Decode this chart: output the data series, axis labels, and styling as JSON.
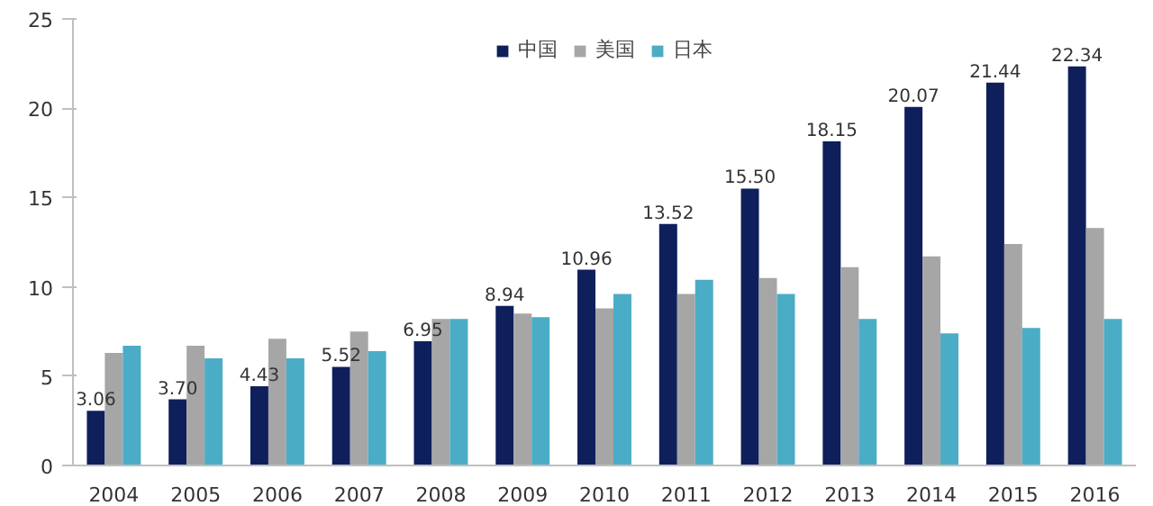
{
  "chart_data": {
    "type": "bar",
    "categories": [
      "2004",
      "2005",
      "2006",
      "2007",
      "2008",
      "2009",
      "2010",
      "2011",
      "2012",
      "2013",
      "2014",
      "2015",
      "2016"
    ],
    "series": [
      {
        "name": "中国",
        "color": "#0e1f5b",
        "values": [
          3.06,
          3.7,
          4.43,
          5.52,
          6.95,
          8.94,
          10.96,
          13.52,
          15.5,
          18.15,
          20.07,
          21.44,
          22.34
        ],
        "value_labels": [
          "3.06",
          "3.70",
          "4.43",
          "5.52",
          "6.95",
          "8.94",
          "10.96",
          "13.52",
          "15.50",
          "18.15",
          "20.07",
          "21.44",
          "22.34"
        ]
      },
      {
        "name": "美国",
        "color": "#a6a6a6",
        "values": [
          6.3,
          6.7,
          7.1,
          7.5,
          8.2,
          8.5,
          8.8,
          9.6,
          10.5,
          11.1,
          11.7,
          12.4,
          13.3
        ]
      },
      {
        "name": "日本",
        "color": "#4bacc6",
        "values": [
          6.7,
          6.0,
          6.0,
          6.4,
          8.2,
          8.3,
          9.6,
          10.4,
          9.6,
          8.2,
          7.4,
          7.7,
          8.2
        ]
      }
    ],
    "ylim": [
      0,
      25
    ],
    "yticks": [
      0,
      5,
      10,
      15,
      20,
      25
    ],
    "grid": false,
    "legend": "top"
  }
}
